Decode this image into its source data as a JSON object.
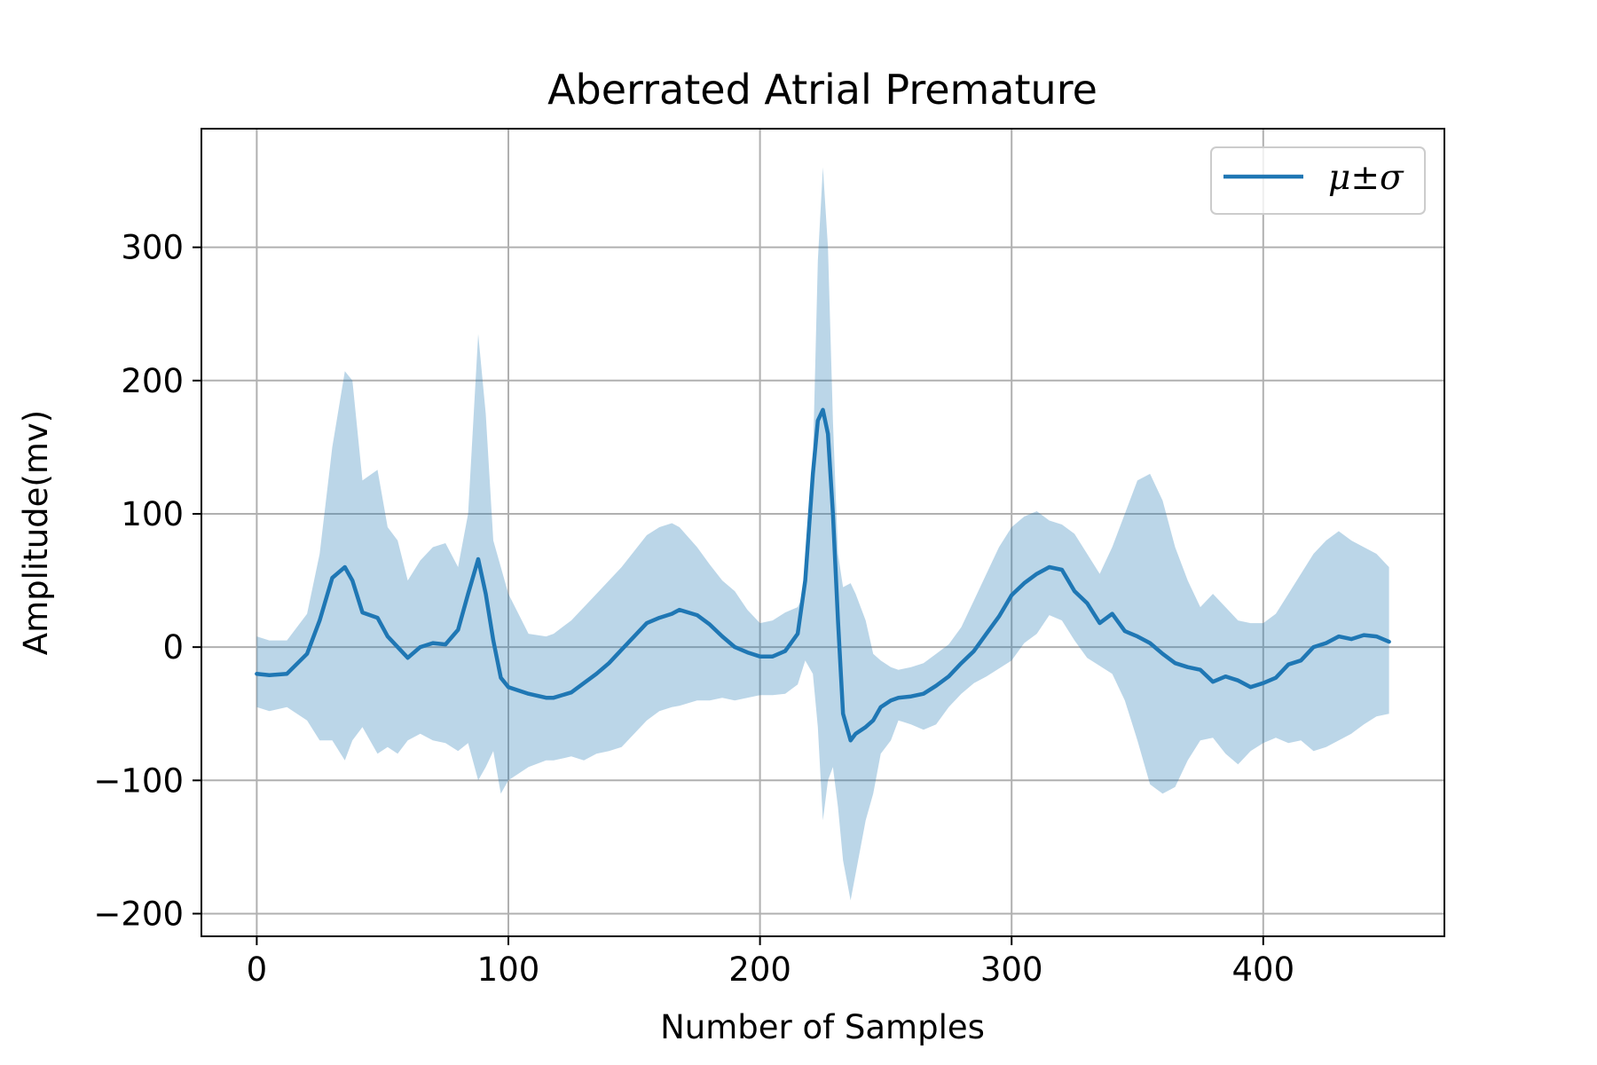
{
  "chart_data": {
    "type": "line",
    "title": "Aberrated Atrial Premature",
    "xlabel": "Number of Samples",
    "ylabel": "Amplitude(mv)",
    "xlim": [
      -22,
      472
    ],
    "ylim": [
      -217,
      389
    ],
    "xticks": [
      0,
      100,
      200,
      300,
      400
    ],
    "yticks": [
      -200,
      -100,
      0,
      100,
      200,
      300
    ],
    "xtick_labels": [
      "0",
      "100",
      "200",
      "300",
      "400"
    ],
    "ytick_labels": [
      "−200",
      "−100",
      "0",
      "100",
      "200",
      "300"
    ],
    "grid": true,
    "legend": {
      "position": "upper-right",
      "entries": [
        "μ±σ"
      ]
    },
    "colors": {
      "line": "#1f77b4",
      "band": "#1f77b4",
      "band_alpha": 0.3,
      "grid": "#b0b0b0"
    },
    "series": [
      {
        "name": "μ±σ",
        "x": [
          0,
          5,
          12,
          20,
          25,
          30,
          35,
          38,
          42,
          48,
          52,
          56,
          60,
          65,
          70,
          75,
          80,
          84,
          88,
          91,
          94,
          97,
          100,
          108,
          115,
          118,
          125,
          130,
          135,
          140,
          145,
          150,
          155,
          160,
          165,
          168,
          175,
          180,
          185,
          190,
          195,
          200,
          205,
          210,
          215,
          218,
          221,
          223,
          225,
          227,
          229,
          231,
          233,
          236,
          238,
          242,
          245,
          248,
          252,
          255,
          260,
          265,
          270,
          275,
          280,
          285,
          290,
          295,
          300,
          305,
          310,
          315,
          320,
          325,
          330,
          335,
          340,
          345,
          350,
          355,
          360,
          365,
          370,
          375,
          380,
          385,
          390,
          395,
          400,
          405,
          410,
          415,
          420,
          425,
          430,
          435,
          440,
          445,
          450
        ],
        "mean": [
          -20,
          -21,
          -20,
          -5,
          20,
          52,
          60,
          50,
          26,
          22,
          8,
          0,
          -8,
          0,
          3,
          2,
          13,
          40,
          66,
          40,
          5,
          -23,
          -30,
          -35,
          -38,
          -38,
          -34,
          -27,
          -20,
          -12,
          -2,
          8,
          18,
          22,
          25,
          28,
          24,
          17,
          8,
          0,
          -4,
          -7,
          -7,
          -3,
          10,
          50,
          130,
          170,
          178,
          160,
          100,
          20,
          -50,
          -70,
          -65,
          -60,
          -55,
          -45,
          -40,
          -38,
          -37,
          -35,
          -29,
          -22,
          -12,
          -3,
          10,
          23,
          39,
          48,
          55,
          60,
          58,
          42,
          33,
          18,
          25,
          12,
          8,
          3,
          -5,
          -12,
          -15,
          -17,
          -26,
          -22,
          -25,
          -30,
          -27,
          -23,
          -13,
          -10,
          0,
          3,
          8,
          6,
          9,
          8,
          4
        ],
        "upper": [
          8,
          5,
          5,
          25,
          70,
          150,
          207,
          200,
          125,
          133,
          90,
          80,
          50,
          65,
          75,
          78,
          60,
          100,
          235,
          175,
          80,
          60,
          40,
          10,
          8,
          10,
          20,
          30,
          40,
          50,
          60,
          72,
          84,
          90,
          93,
          90,
          75,
          62,
          50,
          42,
          28,
          18,
          20,
          26,
          30,
          42,
          140,
          290,
          360,
          300,
          170,
          70,
          45,
          48,
          40,
          20,
          -5,
          -10,
          -15,
          -17,
          -15,
          -12,
          -5,
          2,
          15,
          35,
          55,
          75,
          90,
          98,
          102,
          95,
          92,
          85,
          70,
          55,
          75,
          100,
          125,
          130,
          110,
          75,
          50,
          30,
          40,
          30,
          20,
          18,
          18,
          25,
          40,
          55,
          70,
          80,
          87,
          80,
          75,
          70,
          60
        ],
        "lower": [
          -45,
          -48,
          -45,
          -55,
          -70,
          -70,
          -85,
          -70,
          -60,
          -80,
          -75,
          -80,
          -70,
          -65,
          -70,
          -72,
          -78,
          -72,
          -100,
          -90,
          -78,
          -110,
          -100,
          -90,
          -85,
          -85,
          -82,
          -85,
          -80,
          -78,
          -75,
          -65,
          -55,
          -48,
          -45,
          -44,
          -40,
          -40,
          -38,
          -40,
          -38,
          -36,
          -36,
          -35,
          -28,
          -10,
          -20,
          -60,
          -130,
          -100,
          -90,
          -120,
          -160,
          -190,
          -170,
          -130,
          -110,
          -80,
          -70,
          -55,
          -58,
          -62,
          -58,
          -45,
          -35,
          -27,
          -22,
          -16,
          -10,
          3,
          10,
          24,
          20,
          5,
          -8,
          -14,
          -20,
          -40,
          -70,
          -103,
          -110,
          -105,
          -85,
          -70,
          -68,
          -80,
          -88,
          -78,
          -72,
          -68,
          -72,
          -70,
          -78,
          -75,
          -70,
          -65,
          -58,
          -52,
          -50
        ]
      }
    ]
  }
}
